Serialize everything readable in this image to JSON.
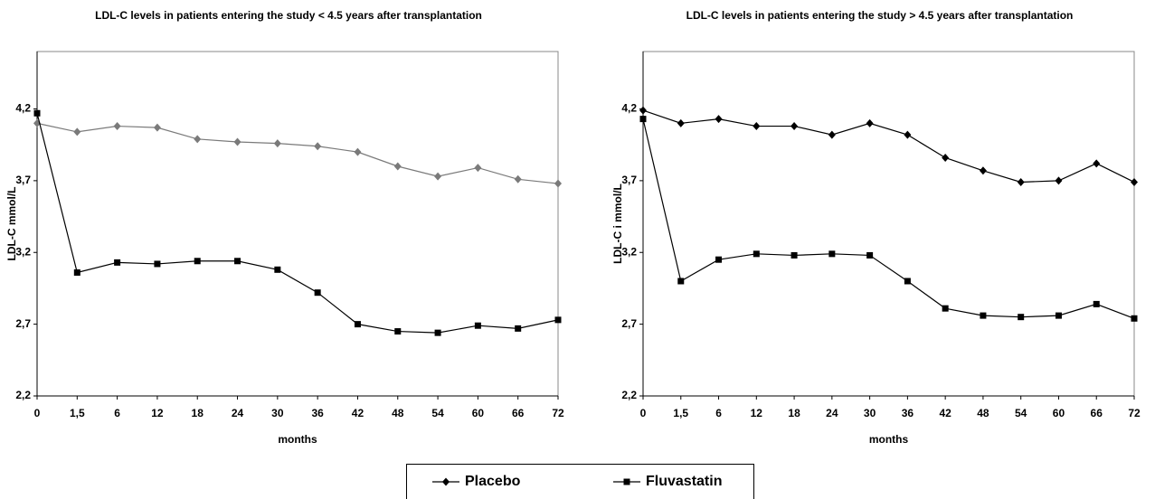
{
  "chart_data": [
    {
      "type": "line",
      "title": "LDL-C levels in patients entering the study < 4.5 years after transplantation",
      "x_label": "months",
      "y_label": "LDL-C  mmol/L",
      "categories": [
        "0",
        "1,5",
        "6",
        "12",
        "18",
        "24",
        "30",
        "36",
        "42",
        "48",
        "54",
        "60",
        "66",
        "72"
      ],
      "ylim": [
        2.2,
        4.6
      ],
      "yticks": [
        {
          "value": 2.2,
          "label": "2,2"
        },
        {
          "value": 2.7,
          "label": "2,7"
        },
        {
          "value": 3.2,
          "label": "3,2"
        },
        {
          "value": 3.7,
          "label": "3,7"
        },
        {
          "value": 4.2,
          "label": "4,2"
        }
      ],
      "series": [
        {
          "name": "Placebo",
          "color": "#7a7a7a",
          "marker": "diamond",
          "values": [
            4.1,
            4.04,
            4.08,
            4.07,
            3.99,
            3.97,
            3.96,
            3.94,
            3.9,
            3.8,
            3.73,
            3.79,
            3.71,
            3.68
          ]
        },
        {
          "name": "Fluvastatin",
          "color": "#000000",
          "marker": "square",
          "values": [
            4.17,
            3.06,
            3.13,
            3.12,
            3.14,
            3.14,
            3.08,
            2.92,
            2.7,
            2.65,
            2.64,
            2.69,
            2.67,
            2.73
          ]
        }
      ]
    },
    {
      "type": "line",
      "title": "LDL-C levels in patients entering the study > 4.5 years after transplantation",
      "x_label": "months",
      "y_label": "LDL-C i  mmol/L",
      "categories": [
        "0",
        "1,5",
        "6",
        "12",
        "18",
        "24",
        "30",
        "36",
        "42",
        "48",
        "54",
        "60",
        "66",
        "72"
      ],
      "ylim": [
        2.2,
        4.6
      ],
      "yticks": [
        {
          "value": 2.2,
          "label": "2,2"
        },
        {
          "value": 2.7,
          "label": "2,7"
        },
        {
          "value": 3.2,
          "label": "3,2"
        },
        {
          "value": 3.7,
          "label": "3,7"
        },
        {
          "value": 4.2,
          "label": "4,2"
        }
      ],
      "series": [
        {
          "color": "#000000",
          "marker": "diamond",
          "values": [
            4.19,
            4.1,
            4.13,
            4.08,
            4.08,
            4.02,
            4.1,
            4.02,
            3.86,
            3.77,
            3.69,
            3.7,
            3.82,
            3.69
          ]
        },
        {
          "color": "#000000",
          "marker": "square",
          "values": [
            4.13,
            3.0,
            3.15,
            3.19,
            3.18,
            3.19,
            3.18,
            3.0,
            2.81,
            2.76,
            2.75,
            2.76,
            2.84,
            2.74
          ]
        }
      ]
    }
  ]
}
